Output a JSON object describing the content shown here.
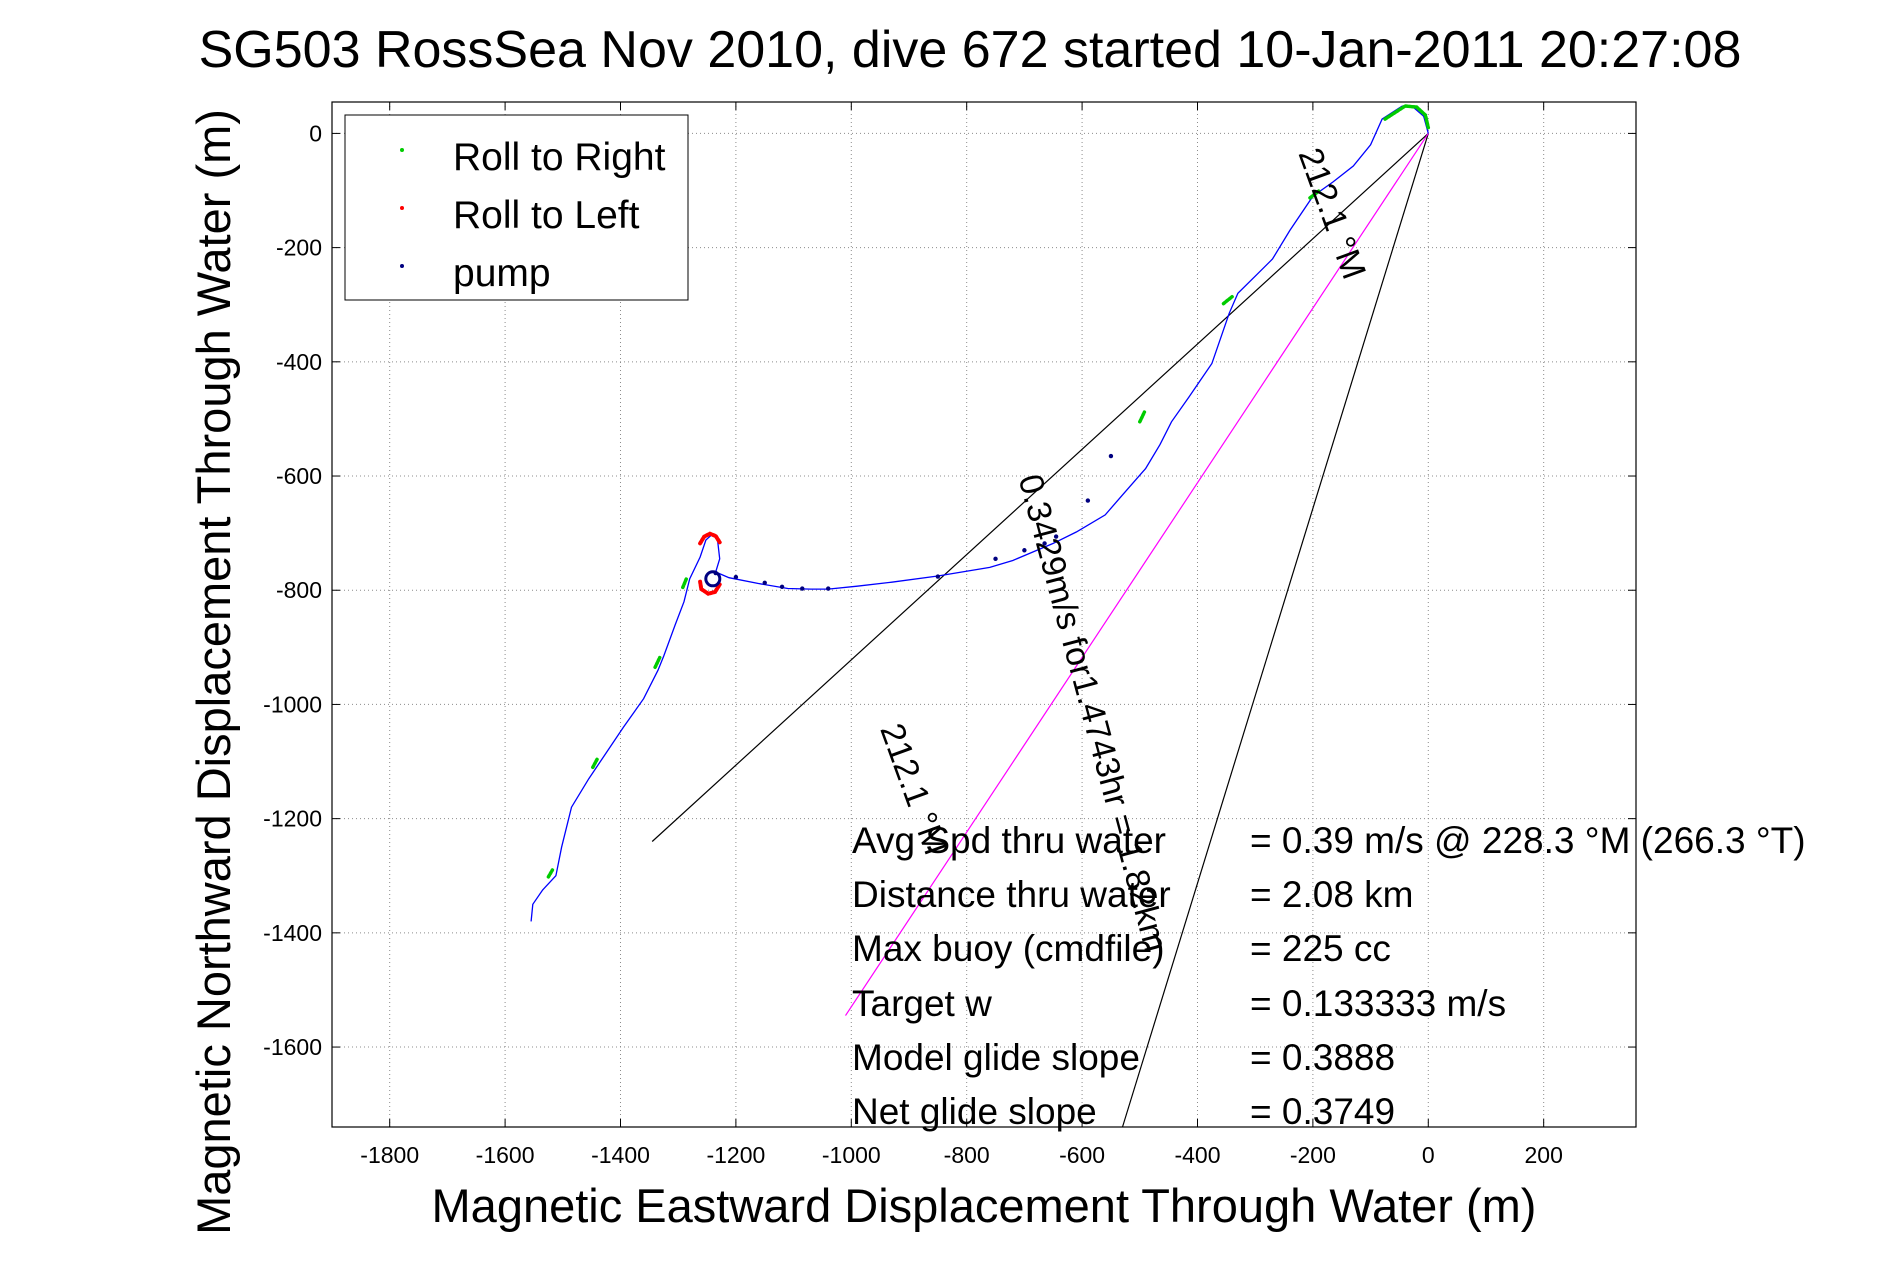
{
  "chart_data": {
    "type": "line",
    "title": "SG503 RossSea Nov 2010, dive 672 started 10-Jan-2011 20:27:08",
    "xlabel": "Magnetic Eastward Displacement Through Water (m)",
    "ylabel": "Magnetic Northward Displacement Through Water (m)",
    "xlim": [
      -1900,
      360
    ],
    "ylim": [
      -1740,
      55
    ],
    "xticks": [
      -1800,
      -1600,
      -1400,
      -1200,
      -1000,
      -800,
      -600,
      -400,
      -200,
      0,
      200
    ],
    "yticks": [
      0,
      -200,
      -400,
      -600,
      -800,
      -1000,
      -1200,
      -1400,
      -1600
    ],
    "grid": true,
    "legend_position": "top-left",
    "legend": [
      {
        "label": "Roll to Right",
        "color": "#00cc00"
      },
      {
        "label": "Roll to Left",
        "color": "#ff0000"
      },
      {
        "label": "pump",
        "color": "#000080"
      }
    ],
    "track": {
      "color": "#0000ff",
      "points": [
        [
          -1555,
          -1380
        ],
        [
          -1552,
          -1350
        ],
        [
          -1535,
          -1325
        ],
        [
          -1512,
          -1300
        ],
        [
          -1502,
          -1250
        ],
        [
          -1485,
          -1180
        ],
        [
          -1455,
          -1130
        ],
        [
          -1425,
          -1085
        ],
        [
          -1395,
          -1040
        ],
        [
          -1360,
          -990
        ],
        [
          -1335,
          -940
        ],
        [
          -1325,
          -915
        ],
        [
          -1305,
          -860
        ],
        [
          -1290,
          -820
        ],
        [
          -1280,
          -780
        ],
        [
          -1262,
          -742
        ],
        [
          -1252,
          -712
        ],
        [
          -1242,
          -703
        ],
        [
          -1232,
          -710
        ],
        [
          -1228,
          -745
        ],
        [
          -1235,
          -768
        ],
        [
          -1212,
          -778
        ],
        [
          -1162,
          -788
        ],
        [
          -1110,
          -797
        ],
        [
          -1070,
          -798
        ],
        [
          -1040,
          -798
        ],
        [
          -990,
          -793
        ],
        [
          -930,
          -786
        ],
        [
          -850,
          -775
        ],
        [
          -760,
          -760
        ],
        [
          -720,
          -748
        ],
        [
          -690,
          -735
        ],
        [
          -650,
          -718
        ],
        [
          -610,
          -698
        ],
        [
          -560,
          -668
        ],
        [
          -530,
          -633
        ],
        [
          -490,
          -587
        ],
        [
          -465,
          -545
        ],
        [
          -445,
          -505
        ],
        [
          -415,
          -462
        ],
        [
          -375,
          -403
        ],
        [
          -345,
          -315
        ],
        [
          -330,
          -280
        ],
        [
          -300,
          -250
        ],
        [
          -270,
          -220
        ],
        [
          -240,
          -170
        ],
        [
          -200,
          -110
        ],
        [
          -165,
          -85
        ],
        [
          -130,
          -57
        ],
        [
          -100,
          -20
        ],
        [
          -80,
          25
        ],
        [
          -45,
          48
        ],
        [
          -25,
          45
        ],
        [
          -8,
          30
        ],
        [
          0,
          0
        ]
      ]
    },
    "pump_points": [
      [
        -1235,
        -770
      ],
      [
        -1200,
        -777
      ],
      [
        -1150,
        -787
      ],
      [
        -1120,
        -794
      ],
      [
        -1085,
        -797
      ],
      [
        -1040,
        -797
      ],
      [
        -850,
        -776
      ],
      [
        -750,
        -745
      ],
      [
        -700,
        -730
      ],
      [
        -665,
        -718
      ],
      [
        -645,
        -706
      ],
      [
        -590,
        -643
      ],
      [
        -550,
        -565
      ]
    ],
    "roll_right_segments": [
      [
        [
          -1525,
          -1302
        ],
        [
          -1518,
          -1290
        ]
      ],
      [
        [
          -1448,
          -1110
        ],
        [
          -1440,
          -1095
        ]
      ],
      [
        [
          -1340,
          -935
        ],
        [
          -1332,
          -918
        ]
      ],
      [
        [
          -1292,
          -795
        ],
        [
          -1285,
          -778
        ]
      ],
      [
        [
          -500,
          -505
        ],
        [
          -492,
          -488
        ]
      ],
      [
        [
          -355,
          -298
        ],
        [
          -340,
          -286
        ]
      ],
      [
        [
          -205,
          -113
        ],
        [
          -190,
          -101
        ]
      ],
      [
        [
          -75,
          25
        ],
        [
          -40,
          48
        ],
        [
          -20,
          46
        ],
        [
          -5,
          32
        ],
        [
          0,
          10
        ]
      ]
    ],
    "roll_left_loops": [
      [
        [
          -1262,
          -718
        ],
        [
          -1255,
          -706
        ],
        [
          -1245,
          -701
        ],
        [
          -1235,
          -705
        ],
        [
          -1228,
          -716
        ]
      ],
      [
        [
          -1262,
          -785
        ],
        [
          -1260,
          -798
        ],
        [
          -1248,
          -806
        ],
        [
          -1236,
          -803
        ],
        [
          -1228,
          -790
        ]
      ]
    ],
    "pump_circle": [
      -1240,
      -780
    ],
    "reference_lines": [
      {
        "color": "#000000",
        "points": [
          [
            0,
            0
          ],
          [
            -1345,
            -1240
          ]
        ]
      },
      {
        "color": "#000000",
        "points": [
          [
            0,
            0
          ],
          [
            -530,
            -1740
          ]
        ]
      },
      {
        "color": "#ff00ff",
        "points": [
          [
            0,
            0
          ],
          [
            -1010,
            -1545
          ]
        ]
      }
    ],
    "annotations": [
      {
        "text": "0.3429m/s for1.4743hr = 1.82km",
        "at": [
          -600,
          -1020
        ],
        "rotate": 75
      },
      {
        "text": "212.1 °M",
        "at": [
          -185,
          -147
        ],
        "rotate": 70
      },
      {
        "text": "212.1 °M",
        "at": [
          -910,
          -1155
        ],
        "rotate": 70
      }
    ],
    "stats": [
      {
        "label": "Avg Spd thru water",
        "value": "=  0.39 m/s @ 228.3 °M (266.3 °T)"
      },
      {
        "label": "Distance thru water",
        "value": "=  2.08 km"
      },
      {
        "label": "Max buoy (cmdfile)",
        "value": "= 225 cc"
      },
      {
        "label": "Target w",
        "value": "= 0.133333 m/s"
      },
      {
        "label": "Model glide slope",
        "value": "= 0.3888"
      },
      {
        "label": "Net glide slope",
        "value": "= 0.3749"
      }
    ]
  }
}
